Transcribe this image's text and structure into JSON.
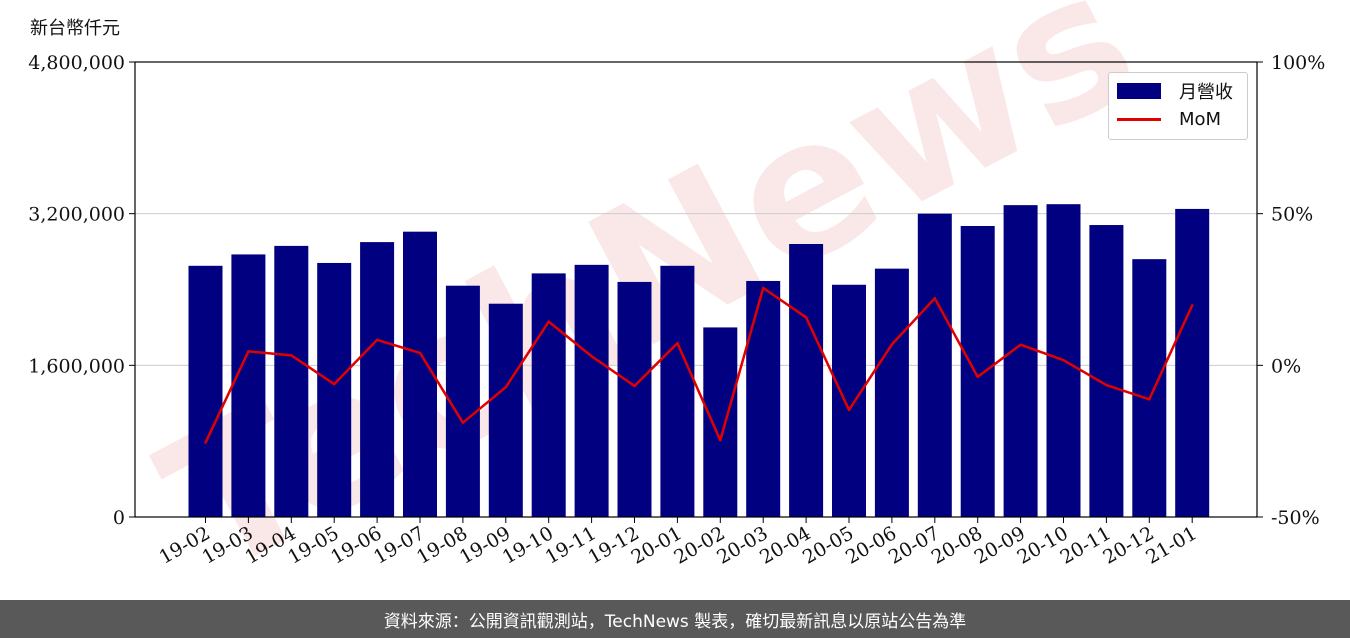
{
  "unit_label": "新台幣仟元",
  "watermark": "TechNews",
  "footer_text": "資料來源：公開資訊觀測站，TechNews 製表，確切最新訊息以原站公告為準",
  "colors": {
    "bar": "#000080",
    "line": "#e00000",
    "grid": "#cccccc",
    "footer_bg": "#595959"
  },
  "chart_data": {
    "type": "bar",
    "categories": [
      "19-02",
      "19-03",
      "19-04",
      "19-05",
      "19-06",
      "19-07",
      "19-08",
      "19-09",
      "19-10",
      "19-11",
      "19-12",
      "20-01",
      "20-02",
      "20-03",
      "20-04",
      "20-05",
      "20-06",
      "20-07",
      "20-08",
      "20-09",
      "20-10",
      "20-11",
      "20-12",
      "21-01"
    ],
    "series": [
      {
        "name": "月營收",
        "type": "bar",
        "axis": "left",
        "values": [
          2650000,
          2770000,
          2860000,
          2680000,
          2900000,
          3010000,
          2440000,
          2250000,
          2570000,
          2660000,
          2480000,
          2650000,
          2000000,
          2490000,
          2880000,
          2450000,
          2620000,
          3200000,
          3070000,
          3290000,
          3300000,
          3080000,
          2720000,
          3250000
        ]
      },
      {
        "name": "MoM",
        "type": "line",
        "axis": "right",
        "values": [
          -25.5,
          4.6,
          3.3,
          -6.2,
          8.4,
          4.1,
          -18.9,
          -7.2,
          14.4,
          3.0,
          -6.8,
          7.3,
          -24.7,
          25.5,
          15.8,
          -14.7,
          6.9,
          22.1,
          -3.8,
          6.8,
          1.7,
          -6.5,
          -11.2,
          19.8
        ]
      }
    ],
    "y_left": {
      "ylim": [
        0,
        4800000
      ],
      "ticks": [
        "0",
        "1,600,000",
        "3,200,000",
        "4,800,000"
      ],
      "tick_values": [
        0,
        1600000,
        3200000,
        4800000
      ]
    },
    "y_right": {
      "ylim": [
        -50,
        100
      ],
      "ticks": [
        "-50%",
        "0%",
        "50%",
        "100%"
      ],
      "tick_values": [
        -50,
        0,
        50,
        100
      ]
    },
    "grid": "horizontal",
    "legend": {
      "position": "top-right",
      "entries": [
        "月營收",
        "MoM"
      ]
    }
  }
}
